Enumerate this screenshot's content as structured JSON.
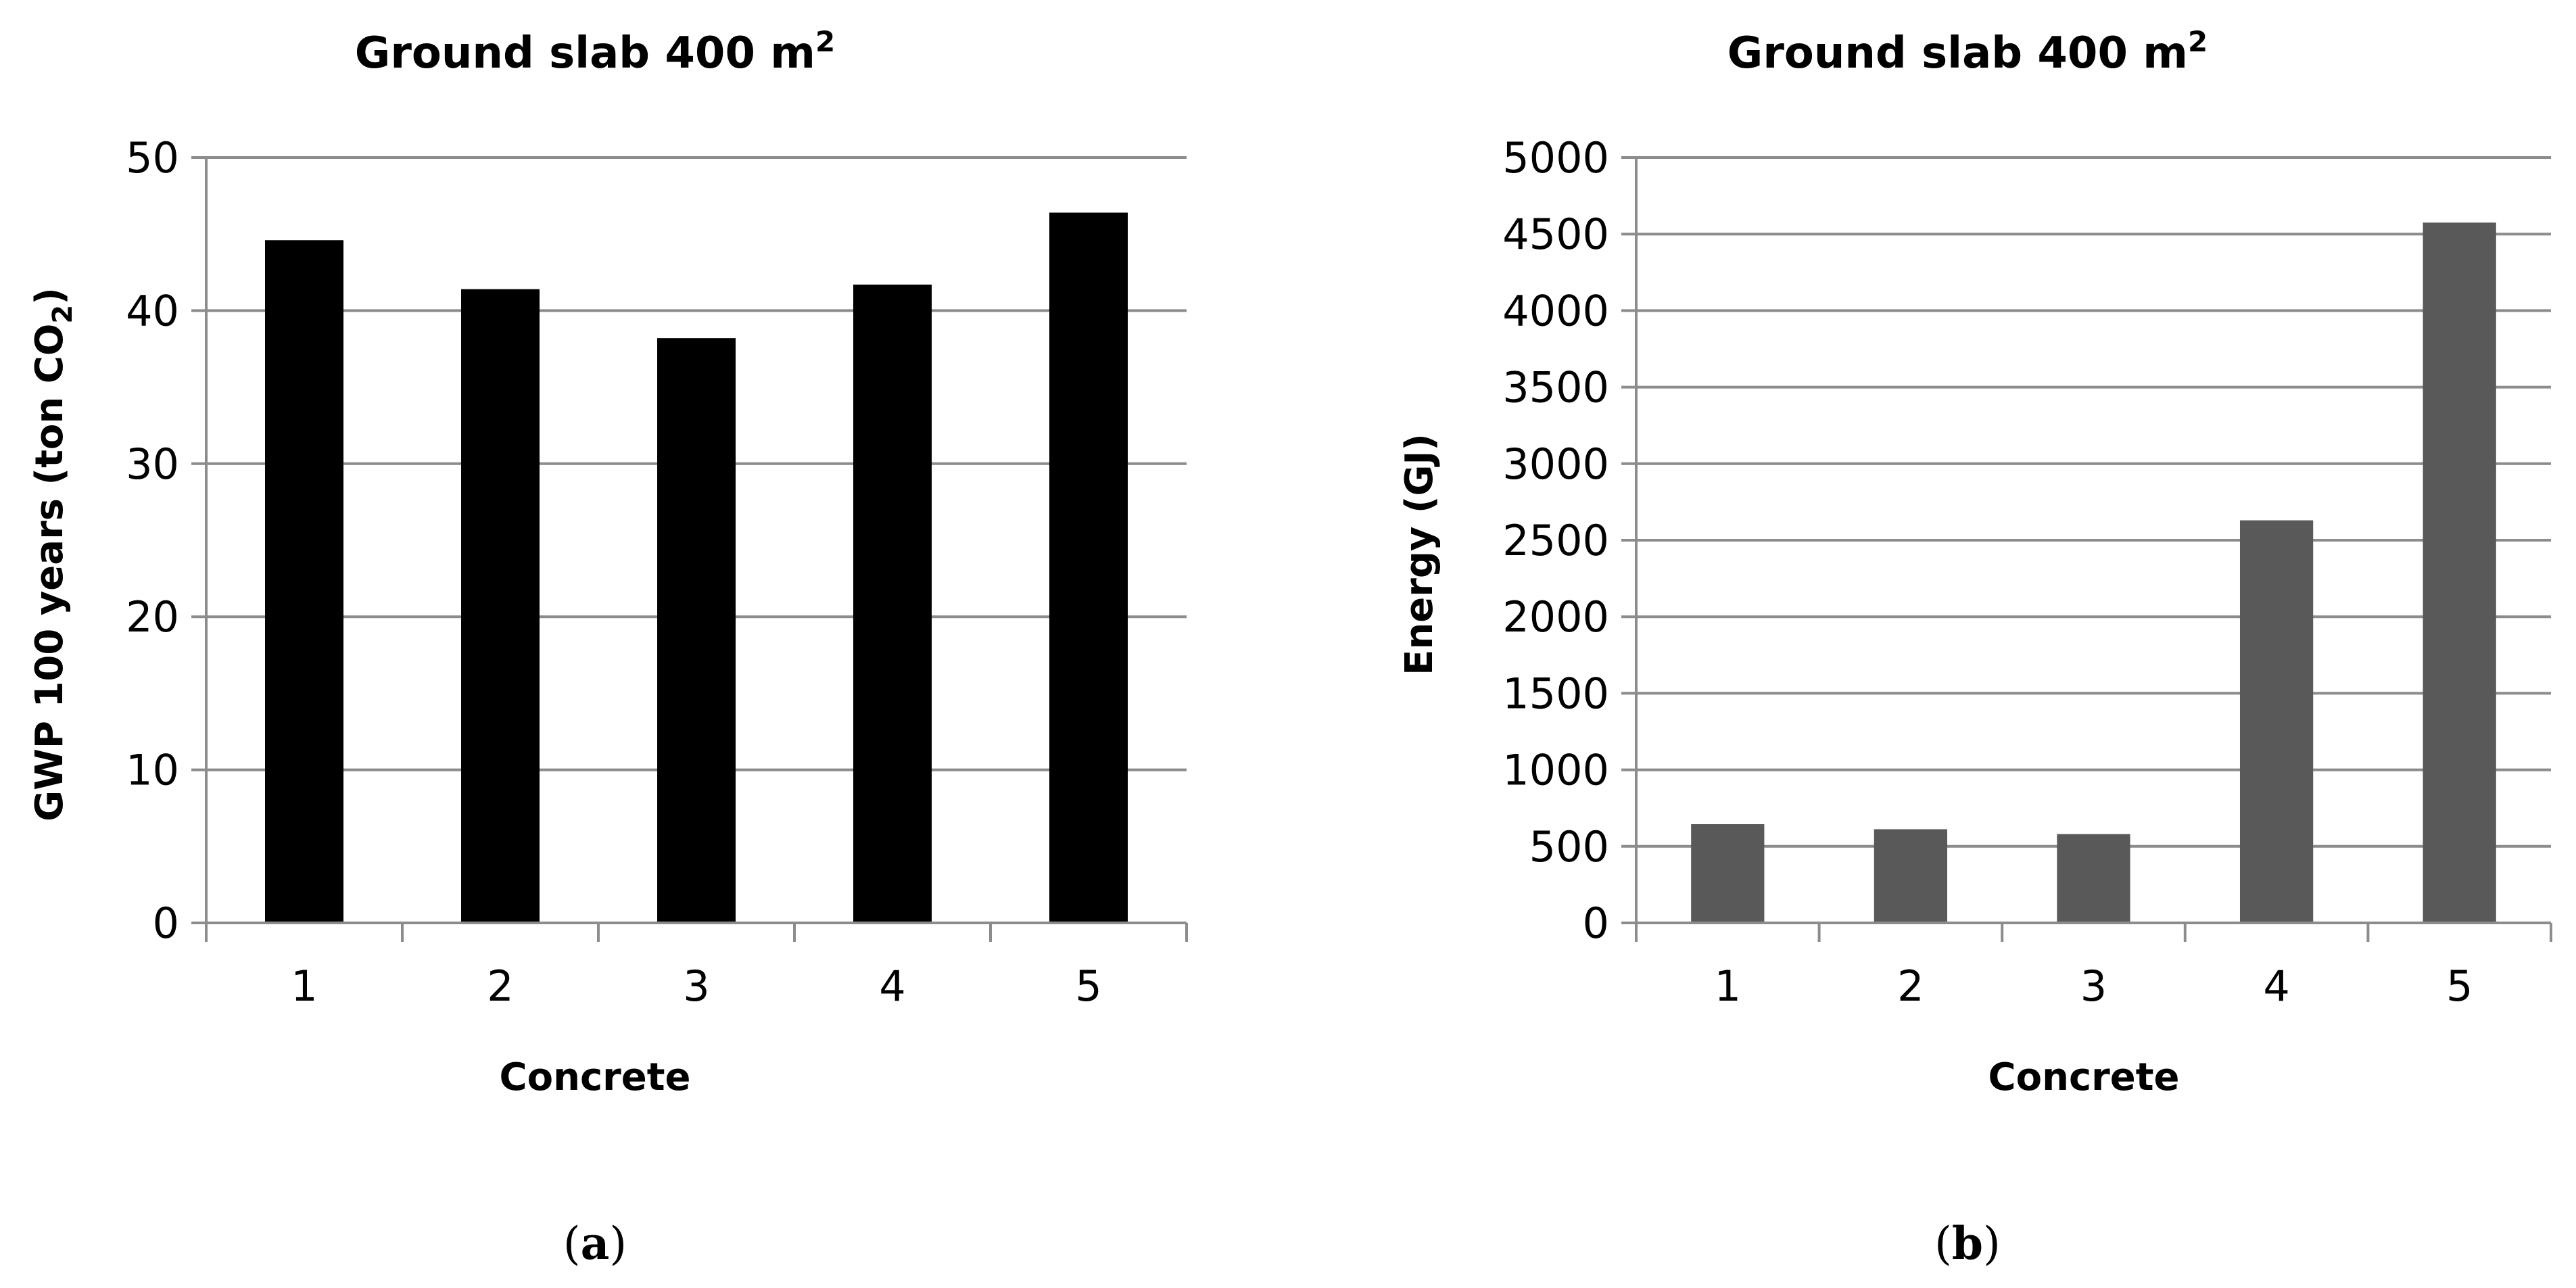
{
  "chart_data": [
    {
      "type": "bar",
      "title": "Ground slab 400 m²",
      "title_main": "Ground slab 400 m",
      "title_sup": "2",
      "xlabel": "Concrete",
      "ylabel": "GWP 100 years (ton CO₂)",
      "ylabel_main": "GWP 100 years (ton CO",
      "ylabel_sub": "2",
      "ylabel_end": ")",
      "categories": [
        "1",
        "2",
        "3",
        "4",
        "5"
      ],
      "values": [
        44.6,
        41.4,
        38.2,
        41.7,
        46.4
      ],
      "ylim": [
        0,
        50
      ],
      "yticks": [
        0,
        10,
        20,
        30,
        40,
        50
      ],
      "grid": true,
      "legend": "none",
      "bar_color": "#000000",
      "caption_open": "(",
      "caption_letter": "a",
      "caption_close": ")"
    },
    {
      "type": "bar",
      "title": "Ground slab 400 m²",
      "title_main": "Ground slab 400 m",
      "title_sup": "2",
      "xlabel": "Concrete",
      "ylabel": "Energy (GJ)",
      "categories": [
        "1",
        "2",
        "3",
        "4",
        "5"
      ],
      "values": [
        645,
        612,
        580,
        2630,
        4575
      ],
      "ylim": [
        0,
        5000
      ],
      "yticks": [
        0,
        500,
        1000,
        1500,
        2000,
        2500,
        3000,
        3500,
        4000,
        4500,
        5000
      ],
      "grid": true,
      "legend": "none",
      "bar_color": "#595959",
      "caption_open": "(",
      "caption_letter": "b",
      "caption_close": ")"
    }
  ]
}
